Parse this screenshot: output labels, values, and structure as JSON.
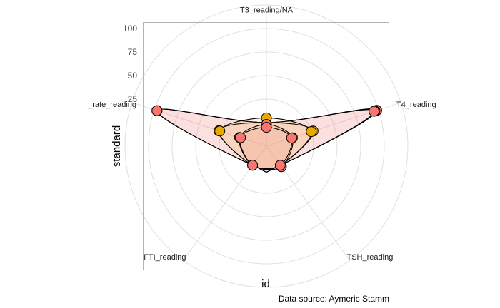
{
  "chart_data": {
    "type": "radar",
    "title": "",
    "xlabel": "id",
    "ylabel": "standard",
    "caption": "Data source: Aymeric Stamm",
    "categories": [
      "T3_reading/NA",
      "T4_reading",
      "TSH_reading",
      "FTI_reading",
      "_rate_reading"
    ],
    "yticks": [
      25,
      50,
      75,
      100
    ],
    "ylim": [
      -25,
      125
    ],
    "grid": true,
    "series": [
      {
        "values": [
          0,
          98,
          0,
          0,
          97
        ],
        "color": "#f8766d"
      },
      {
        "values": [
          0,
          96,
          0,
          0,
          97
        ],
        "color": "#f8766d"
      },
      {
        "values": [
          0,
          95,
          0,
          0,
          97
        ],
        "color": "#f8766d"
      },
      {
        "values": [
          0,
          27,
          0,
          0,
          28
        ],
        "color": "#e6ab02"
      },
      {
        "values": [
          5,
          25,
          0,
          0,
          27
        ],
        "color": "#e6ab02"
      },
      {
        "values": [
          -2,
          4,
          2,
          0,
          5
        ],
        "color": "#f8766d"
      },
      {
        "values": [
          -5,
          3,
          0,
          0,
          4
        ],
        "color": "#f8766d"
      }
    ]
  }
}
